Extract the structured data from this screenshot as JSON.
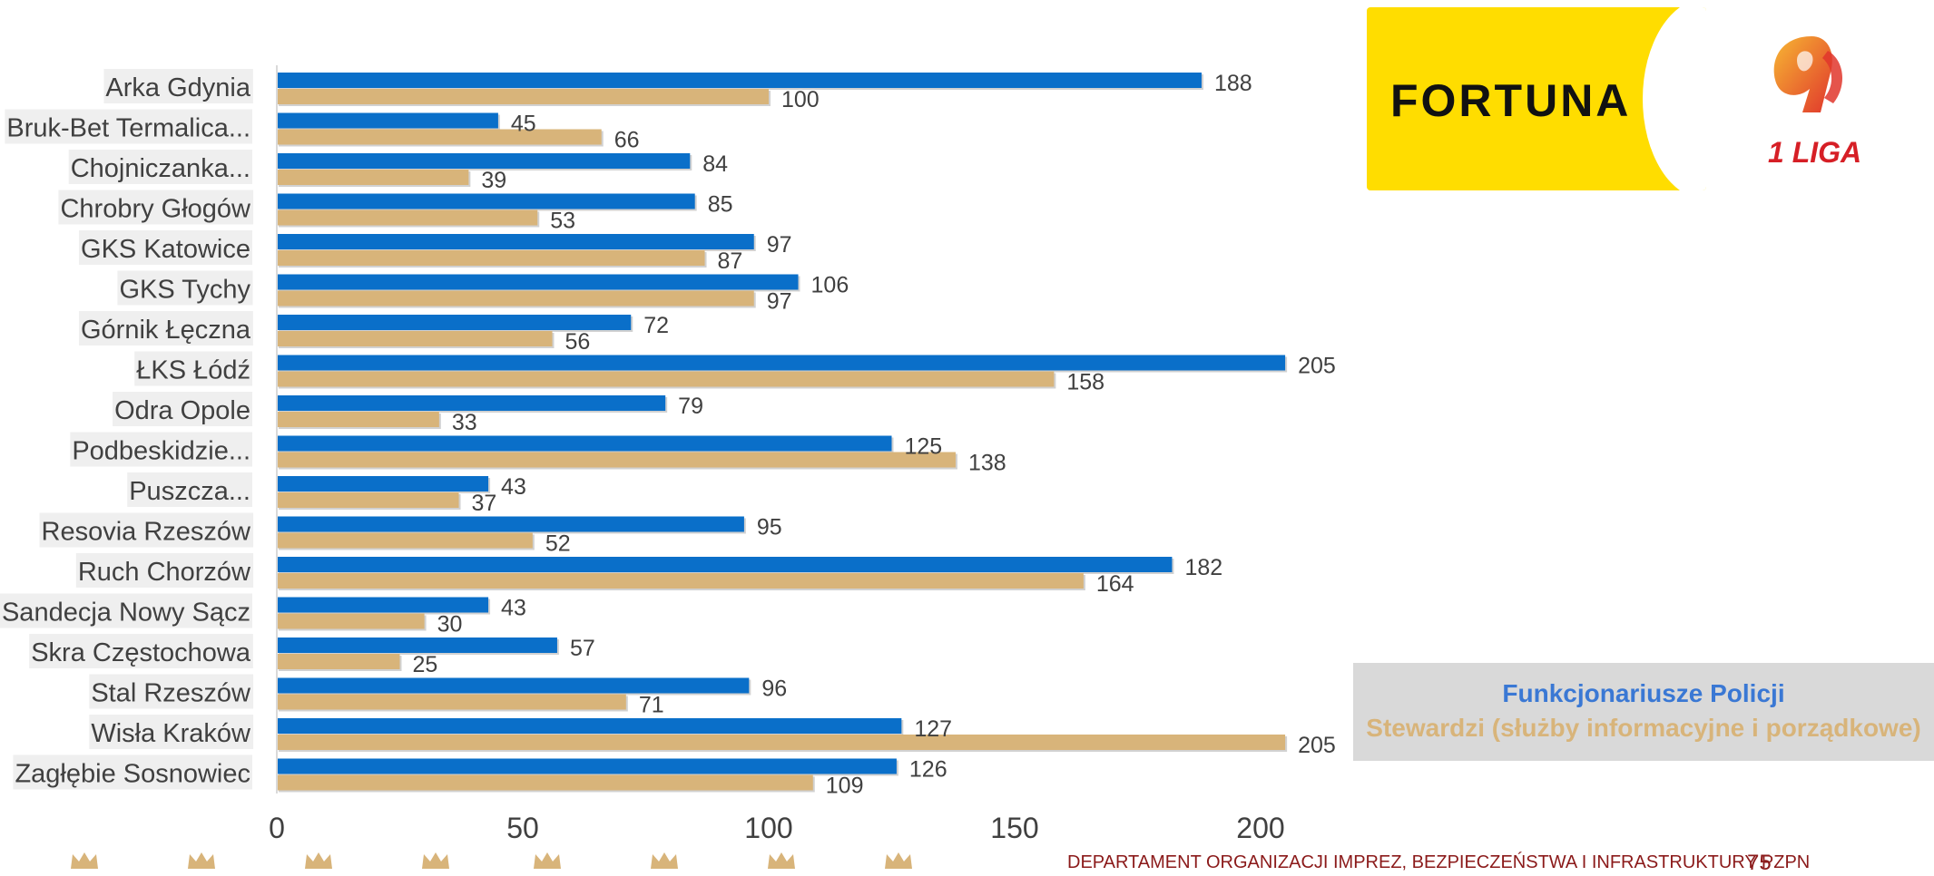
{
  "chart_data": {
    "type": "bar",
    "orientation": "horizontal",
    "categories": [
      "Arka Gdynia",
      "Bruk-Bet Termalica...",
      "Chojniczanka...",
      "Chrobry Głogów",
      "GKS Katowice",
      "GKS Tychy",
      "Górnik Łęczna",
      "ŁKS Łódź",
      "Odra Opole",
      "Podbeskidzie...",
      "Puszcza...",
      "Resovia Rzeszów",
      "Ruch Chorzów",
      "Sandecja Nowy Sącz",
      "Skra Częstochowa",
      "Stal Rzeszów",
      "Wisła Kraków",
      "Zagłębie Sosnowiec"
    ],
    "series": [
      {
        "name": "Funkcjonariusze Policji",
        "color": "#0a6fc9",
        "values": [
          188,
          45,
          84,
          85,
          97,
          106,
          72,
          205,
          79,
          125,
          43,
          95,
          182,
          43,
          57,
          96,
          127,
          126
        ]
      },
      {
        "name": "Stewardzi (służby informacyjne i porządkowe)",
        "color": "#d8b47a",
        "values": [
          100,
          66,
          39,
          53,
          87,
          97,
          56,
          158,
          33,
          138,
          37,
          52,
          164,
          30,
          25,
          71,
          205,
          109
        ]
      }
    ],
    "xlim": [
      0,
      250
    ],
    "xticks": [
      "0",
      "50",
      "100",
      "150",
      "200",
      "250"
    ],
    "legend_position": "bottom-right",
    "grid": false
  },
  "logos": {
    "fortuna_text": "FORTUNA",
    "liga_text": "1 LIGA"
  },
  "legend": {
    "police_label": "Funkcjonariusze Policji",
    "police_color": "#3a78d4",
    "stewards_label": "Stewardzi (służby informacyjne i porządkowe)",
    "stewards_color": "#d8b47a"
  },
  "footer": {
    "department": "DEPARTAMENT ORGANIZACJI IMPREZ, BEZPIECZEŃSTWA I INFRASTRUKTURY PZPN",
    "page_number": "75"
  },
  "decor": {
    "crown_color": "#d8b47a",
    "crown_icon": "crown-icon"
  }
}
